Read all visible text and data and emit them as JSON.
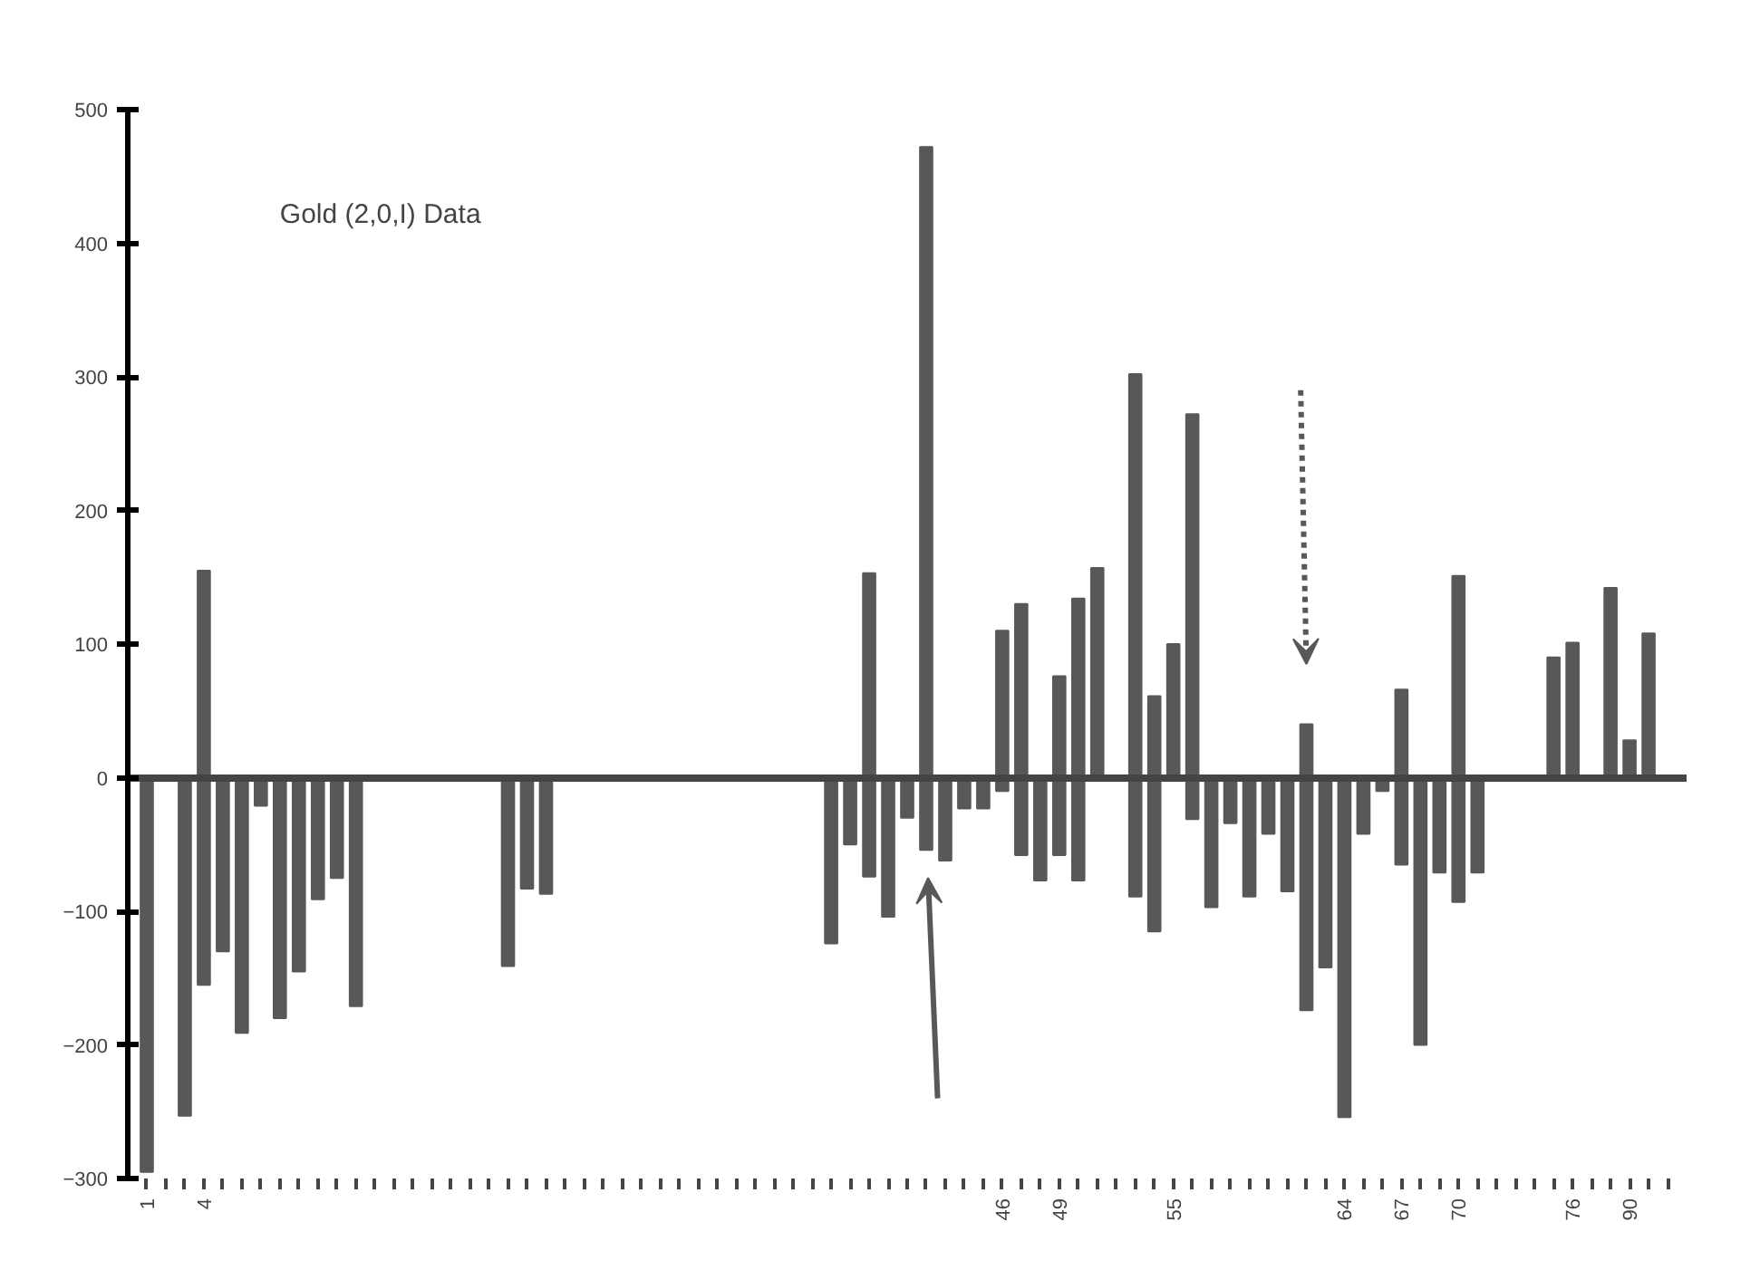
{
  "chart_data": {
    "type": "bar",
    "title": "Gold (2,0,I) Data",
    "categories": [
      "1",
      null,
      null,
      "4",
      null,
      null,
      null,
      null,
      null,
      null,
      null,
      null,
      null,
      null,
      null,
      null,
      null,
      null,
      null,
      null,
      null,
      null,
      null,
      null,
      null,
      null,
      null,
      null,
      null,
      null,
      null,
      null,
      null,
      null,
      null,
      null,
      null,
      null,
      null,
      null,
      null,
      null,
      null,
      null,
      null,
      "46",
      null,
      null,
      "49",
      null,
      null,
      null,
      null,
      null,
      "55",
      null,
      null,
      null,
      null,
      null,
      null,
      null,
      null,
      "64",
      null,
      null,
      "67",
      null,
      null,
      "70",
      null,
      null,
      null,
      null,
      null,
      "76",
      null,
      null,
      "90",
      null,
      null
    ],
    "series": [
      {
        "color": "#58585a",
        "values": [
          null,
          null,
          null,
          155,
          null,
          null,
          null,
          null,
          null,
          null,
          null,
          null,
          null,
          null,
          null,
          null,
          null,
          null,
          null,
          null,
          null,
          null,
          null,
          null,
          null,
          null,
          null,
          null,
          null,
          null,
          null,
          null,
          null,
          null,
          null,
          null,
          null,
          null,
          153,
          null,
          null,
          472,
          null,
          null,
          null,
          110,
          130,
          null,
          76,
          134,
          157,
          null,
          302,
          61,
          100,
          272,
          null,
          null,
          null,
          null,
          null,
          40,
          null,
          null,
          null,
          null,
          66,
          null,
          null,
          151,
          null,
          null,
          null,
          null,
          90,
          101,
          null,
          142,
          28,
          108,
          null
        ]
      },
      {
        "color": "#58585a",
        "values": [
          -295,
          null,
          -253,
          -155,
          -130,
          -191,
          -21,
          -180,
          -145,
          -91,
          -75,
          -171,
          null,
          null,
          null,
          null,
          null,
          null,
          null,
          -141,
          -83,
          -87,
          null,
          null,
          null,
          null,
          null,
          null,
          null,
          null,
          null,
          null,
          null,
          null,
          null,
          null,
          -124,
          -50,
          -74,
          -104,
          -30,
          -54,
          -62,
          -23,
          -23,
          -10,
          -58,
          -77,
          -58,
          -77,
          null,
          null,
          -89,
          -115,
          null,
          -31,
          -97,
          -34,
          -89,
          -42,
          -85,
          -174,
          -142,
          -254,
          -42,
          -10,
          -65,
          -200,
          -71,
          -93,
          -71,
          null,
          null,
          null,
          null,
          null,
          null,
          null,
          null,
          null,
          null
        ]
      }
    ],
    "ylim": [
      -300,
      500
    ],
    "yticks": [
      -300,
      -200,
      -100,
      0,
      100,
      200,
      300,
      400,
      500
    ]
  }
}
